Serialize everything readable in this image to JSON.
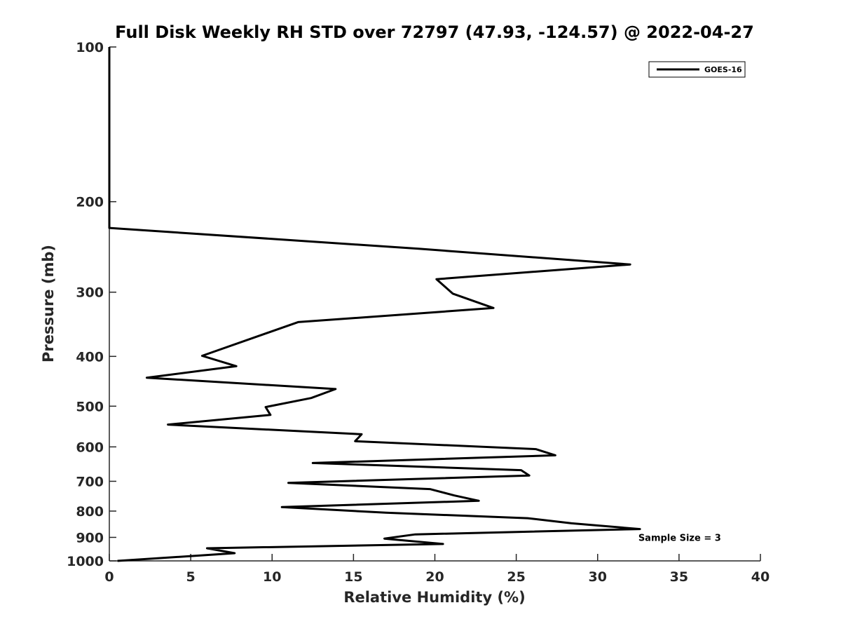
{
  "chart_data": {
    "type": "line",
    "title": "Full Disk Weekly RH STD over 72797 (47.93, -124.57) @ 2022-04-27",
    "xlabel": "Relative Humidity (%)",
    "ylabel": "Pressure (mb)",
    "xlim": [
      0,
      40
    ],
    "ylim": [
      100,
      1000
    ],
    "y_scale": "log",
    "y_reversed": true,
    "x_ticks": [
      0,
      5,
      10,
      15,
      20,
      25,
      30,
      35,
      40
    ],
    "y_ticks": [
      100,
      200,
      300,
      400,
      500,
      600,
      700,
      800,
      900,
      1000
    ],
    "grid": false,
    "legend_position": "top-right",
    "series": [
      {
        "name": "GOES-16",
        "color": "#000000",
        "points": [
          {
            "x": 0,
            "y": 100
          },
          {
            "x": 0,
            "y": 150
          },
          {
            "x": 0,
            "y": 200
          },
          {
            "x": 0,
            "y": 225
          },
          {
            "x": 19,
            "y": 247
          },
          {
            "x": 32,
            "y": 265
          },
          {
            "x": 20.1,
            "y": 283
          },
          {
            "x": 21.1,
            "y": 302
          },
          {
            "x": 23.6,
            "y": 322
          },
          {
            "x": 11.6,
            "y": 343
          },
          {
            "x": 5.7,
            "y": 399
          },
          {
            "x": 7.8,
            "y": 418
          },
          {
            "x": 2.3,
            "y": 440
          },
          {
            "x": 13.9,
            "y": 463
          },
          {
            "x": 12.4,
            "y": 482
          },
          {
            "x": 9.6,
            "y": 502
          },
          {
            "x": 9.9,
            "y": 520
          },
          {
            "x": 3.6,
            "y": 543
          },
          {
            "x": 15.5,
            "y": 567
          },
          {
            "x": 15.1,
            "y": 585
          },
          {
            "x": 26.2,
            "y": 606
          },
          {
            "x": 27.4,
            "y": 623
          },
          {
            "x": 12.5,
            "y": 645
          },
          {
            "x": 25.3,
            "y": 666
          },
          {
            "x": 25.8,
            "y": 682
          },
          {
            "x": 11.0,
            "y": 705
          },
          {
            "x": 19.7,
            "y": 725
          },
          {
            "x": 21.2,
            "y": 746
          },
          {
            "x": 22.7,
            "y": 764
          },
          {
            "x": 10.6,
            "y": 786
          },
          {
            "x": 17.0,
            "y": 806
          },
          {
            "x": 25.7,
            "y": 826
          },
          {
            "x": 28.4,
            "y": 845
          },
          {
            "x": 32.6,
            "y": 867
          },
          {
            "x": 18.8,
            "y": 888
          },
          {
            "x": 16.9,
            "y": 905
          },
          {
            "x": 20.5,
            "y": 927
          },
          {
            "x": 6.0,
            "y": 945
          },
          {
            "x": 7.7,
            "y": 966
          },
          {
            "x": 0.5,
            "y": 1000
          }
        ]
      }
    ],
    "annotations": [
      {
        "text": "Sample Size = 3",
        "x": 32.5,
        "y": 900
      }
    ]
  }
}
